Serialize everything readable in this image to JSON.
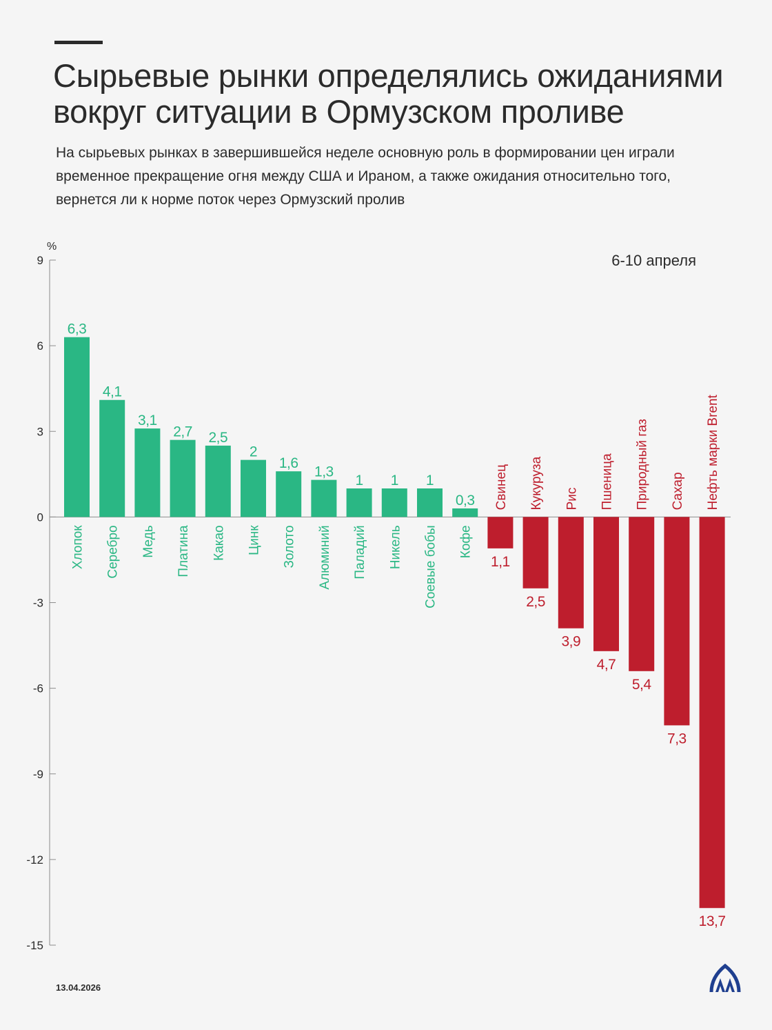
{
  "header": {
    "title": "Сырьевые рынки определялись ожиданиями вокруг ситуации в Ормузском проливе",
    "subtitle": "На сырьевых рынках в завершившейся неделе основную роль в формировании цен играли временное прекращение огня между США и Ираном, а также ожидания относительно того, вернется ли к норме поток через Ормузский пролив"
  },
  "chart_data": {
    "type": "bar",
    "period": "6-10 апреля",
    "ylabel": "%",
    "ylim": [
      -15,
      9
    ],
    "yticks": [
      "9",
      "6",
      "3",
      "0",
      "-3",
      "-6",
      "-9",
      "-12",
      "-15"
    ],
    "ytick_values": [
      9,
      6,
      3,
      0,
      -3,
      -6,
      -9,
      -12,
      -15
    ],
    "categories": [
      "Хлопок",
      "Серебро",
      "Медь",
      "Платина",
      "Какао",
      "Цинк",
      "Золото",
      "Алюминий",
      "Паладий",
      "Никель",
      "Соевые бобы",
      "Кофе",
      "Свинец",
      "Кукуруза",
      "Рис",
      "Пшеница",
      "Природный газ",
      "Сахар",
      "Нефть марки Brent"
    ],
    "values": [
      6.3,
      4.1,
      3.1,
      2.7,
      2.5,
      2,
      1.6,
      1.3,
      1,
      1,
      1,
      0.3,
      -1.1,
      -2.5,
      -3.9,
      -4.7,
      -5.4,
      -7.3,
      -13.7
    ],
    "value_labels": [
      "6,3",
      "4,1",
      "3,1",
      "2,7",
      "2,5",
      "2",
      "1,6",
      "1,3",
      "1",
      "1",
      "1",
      "0,3",
      "1,1",
      "2,5",
      "3,9",
      "4,7",
      "5,4",
      "7,3",
      "13,7"
    ],
    "colors": {
      "positive": "#2ab784",
      "negative": "#be1e2d",
      "axis": "#8c8c8c",
      "text": "#2b2b2b"
    },
    "grid": false,
    "legend": "none"
  },
  "footer": {
    "date": "13.04.2026",
    "logo": "AA"
  }
}
